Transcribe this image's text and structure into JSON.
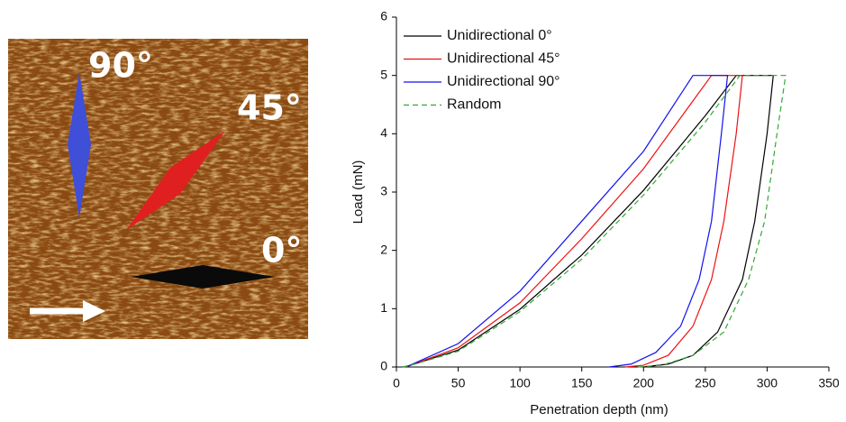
{
  "image": {
    "labels": [
      "90°",
      "45°",
      "0°"
    ]
  },
  "chart_data": {
    "type": "line",
    "xlabel": "Penetration depth (nm)",
    "ylabel": "Load (mN)",
    "xlim": [
      0,
      350
    ],
    "xticks": [
      0,
      50,
      100,
      150,
      200,
      250,
      300,
      350
    ],
    "ylim": [
      0,
      6
    ],
    "yticks": [
      0,
      1,
      2,
      3,
      4,
      5,
      6
    ],
    "legend": "upper-left",
    "series": [
      {
        "name": "Unidirectional 0°",
        "color": "#000000",
        "dash": false,
        "x": [
          5,
          10,
          50,
          100,
          150,
          200,
          250,
          275,
          305,
          300,
          290,
          280,
          260,
          240,
          220,
          200
        ],
        "values": [
          0,
          0.02,
          0.29,
          0.99,
          1.92,
          3.03,
          4.31,
          5,
          5,
          4,
          2.5,
          1.5,
          0.6,
          0.2,
          0.05,
          0
        ]
      },
      {
        "name": "Unidirectional 45°",
        "color": "#ee1111",
        "dash": false,
        "x": [
          5,
          10,
          50,
          100,
          150,
          200,
          255,
          280,
          275,
          265,
          255,
          240,
          220,
          200,
          185
        ],
        "values": [
          0,
          0.02,
          0.33,
          1.1,
          2.2,
          3.4,
          5,
          5,
          4,
          2.5,
          1.5,
          0.7,
          0.2,
          0.03,
          0
        ]
      },
      {
        "name": "Unidirectional 90°",
        "color": "#1111ee",
        "dash": false,
        "x": [
          5,
          10,
          50,
          100,
          150,
          200,
          240,
          268,
          263,
          255,
          245,
          230,
          210,
          190,
          172
        ],
        "values": [
          0,
          0.02,
          0.4,
          1.3,
          2.5,
          3.7,
          5,
          5,
          4,
          2.5,
          1.5,
          0.7,
          0.25,
          0.05,
          0
        ]
      },
      {
        "name": "Random",
        "color": "#33aa33",
        "dash": true,
        "x": [
          5,
          10,
          50,
          100,
          150,
          200,
          250,
          278,
          315,
          308,
          298,
          285,
          265,
          240,
          215,
          195
        ],
        "values": [
          0,
          0.02,
          0.27,
          0.95,
          1.85,
          2.95,
          4.2,
          5,
          5,
          4,
          2.5,
          1.5,
          0.6,
          0.2,
          0.03,
          0
        ]
      }
    ]
  }
}
